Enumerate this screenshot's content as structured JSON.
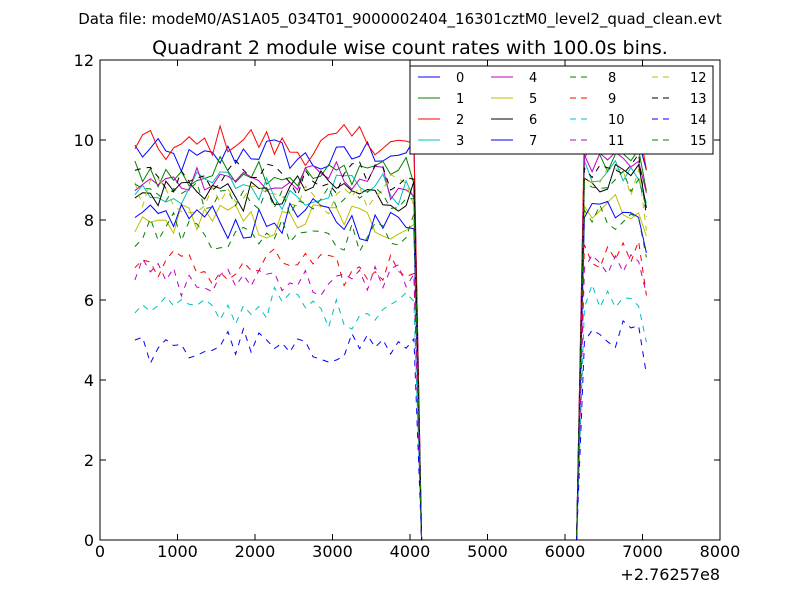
{
  "chart_data": {
    "type": "line",
    "suptitle": "Data file: modeM0/AS1A05_034T01_9000002404_16301cztM0_level2_quad_clean.evt",
    "title": "Quadrant 2 module wise count rates with 100.0s bins.",
    "xlabel": "",
    "ylabel": "",
    "xlim": [
      0,
      8000
    ],
    "ylim": [
      0,
      12
    ],
    "xticks": [
      0,
      1000,
      2000,
      3000,
      4000,
      5000,
      6000,
      7000,
      8000
    ],
    "xtick_labels": [
      "0",
      "1000",
      "2000",
      "3000",
      "4000",
      "5000",
      "6000",
      "7000",
      "8000"
    ],
    "yticks": [
      0,
      2,
      4,
      6,
      8,
      10,
      12
    ],
    "ytick_labels": [
      "0",
      "2",
      "4",
      "6",
      "8",
      "10",
      "12"
    ],
    "x_offset_label": "+2.76257e8",
    "legend_position": "top-right",
    "legend_columns": 4,
    "grid": false,
    "x_sampling": {
      "active1": [
        450,
        4050
      ],
      "active2": [
        6250,
        7050
      ],
      "step": 100,
      "gap": [
        4150,
        6150
      ]
    },
    "series": [
      {
        "name": "0",
        "mean": 9.6,
        "color": "#0000ff",
        "dash": "solid"
      },
      {
        "name": "1",
        "mean": 9.2,
        "color": "#008000",
        "dash": "solid"
      },
      {
        "name": "2",
        "mean": 9.9,
        "color": "#ff0000",
        "dash": "solid"
      },
      {
        "name": "3",
        "mean": 8.8,
        "color": "#00bfbf",
        "dash": "solid"
      },
      {
        "name": "4",
        "mean": 9.0,
        "color": "#bf00bf",
        "dash": "solid"
      },
      {
        "name": "5",
        "mean": 8.0,
        "color": "#bfbf00",
        "dash": "solid"
      },
      {
        "name": "6",
        "mean": 8.7,
        "color": "#000000",
        "dash": "solid"
      },
      {
        "name": "7",
        "mean": 8.0,
        "color": "#0000ff",
        "dash": "solid"
      },
      {
        "name": "8",
        "mean": 7.7,
        "color": "#008000",
        "dash": "dashed"
      },
      {
        "name": "9",
        "mean": 6.8,
        "color": "#ff0000",
        "dash": "dashed"
      },
      {
        "name": "10",
        "mean": 5.8,
        "color": "#00bfbf",
        "dash": "dashed"
      },
      {
        "name": "11",
        "mean": 6.5,
        "color": "#bf00bf",
        "dash": "dashed"
      },
      {
        "name": "12",
        "mean": 8.6,
        "color": "#bfbf00",
        "dash": "dashed"
      },
      {
        "name": "13",
        "mean": 9.0,
        "color": "#000000",
        "dash": "dashed"
      },
      {
        "name": "14",
        "mean": 4.8,
        "color": "#0000ff",
        "dash": "dashed"
      },
      {
        "name": "15",
        "mean": 8.6,
        "color": "#008000",
        "dash": "dashed"
      }
    ]
  }
}
